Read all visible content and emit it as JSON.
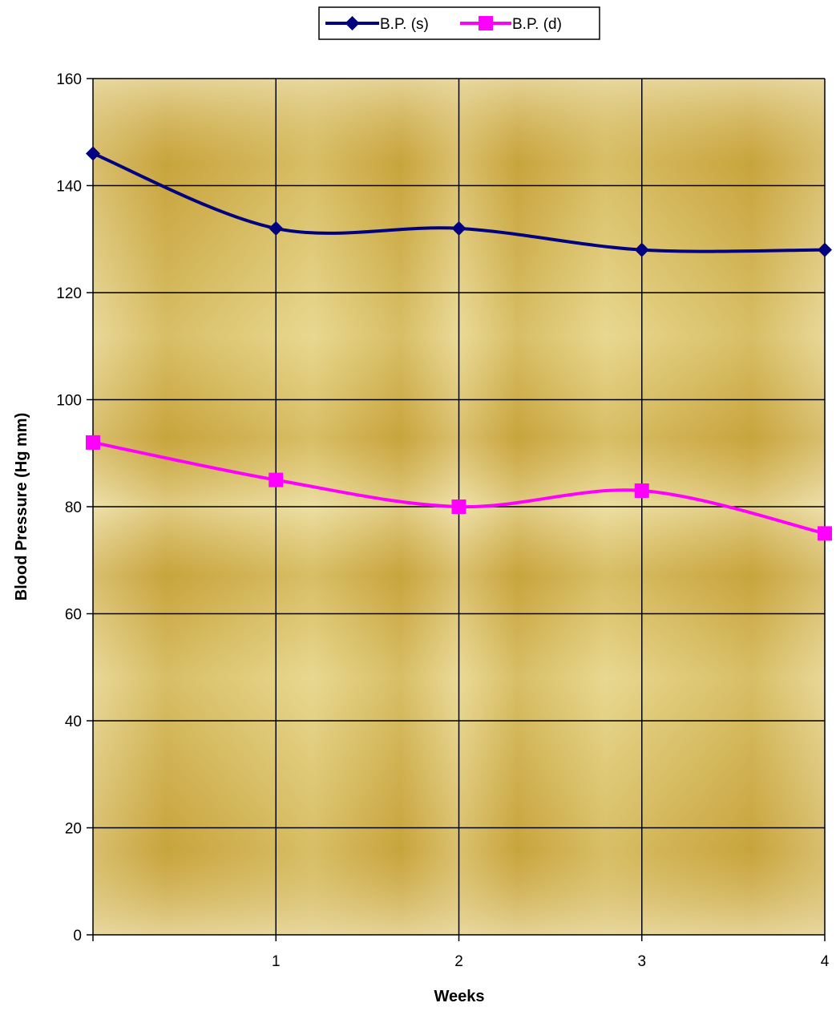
{
  "chart_data": {
    "type": "line",
    "smoothed": true,
    "x": [
      0,
      1,
      2,
      3,
      4
    ],
    "xticks": [
      "",
      "1",
      "2",
      "3",
      "4"
    ],
    "xlabel": "Weeks",
    "ylabel": "Blood Pressure (Hg mm)",
    "ylim": [
      0,
      160
    ],
    "yticks": [
      0,
      20,
      40,
      60,
      80,
      100,
      120,
      140,
      160
    ],
    "grid": true,
    "legend_position": "top-center",
    "series": [
      {
        "name": "B.P. (s)",
        "values": [
          146,
          132,
          132,
          128,
          128
        ],
        "color": "#000080",
        "marker": "diamond"
      },
      {
        "name": "B.P. (d)",
        "values": [
          92,
          85,
          80,
          83,
          75
        ],
        "color": "#FF00FF",
        "marker": "square"
      }
    ],
    "plot_background": [
      "#E8D890",
      "#C8A43C"
    ]
  }
}
